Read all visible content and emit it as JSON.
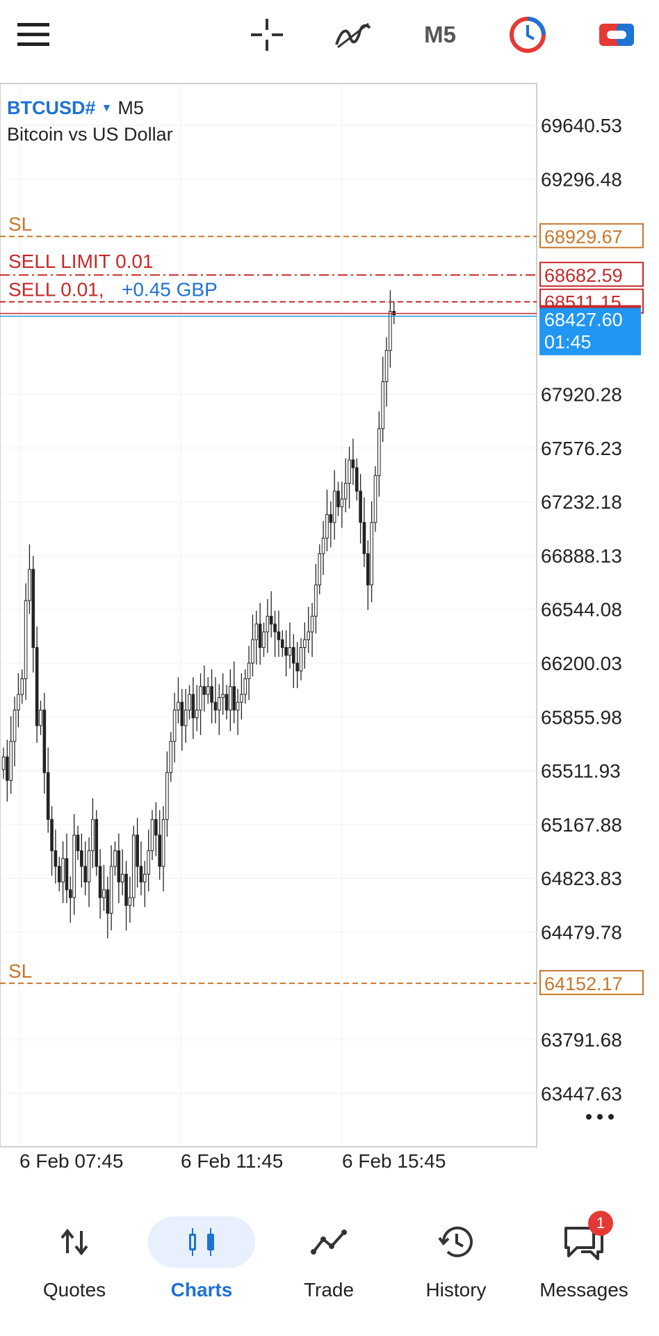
{
  "toolbar": {
    "menu_icon": "hamburger-icon",
    "crosshair_icon": "crosshair-icon",
    "indicators_icon": "indicators-icon",
    "timeframe": "M5",
    "one_click_icon": "clock-circle-icon",
    "trade_icon": "one-click-trading-icon"
  },
  "chart": {
    "symbol": "BTCUSD#",
    "timeframe": "M5",
    "description": "Bitcoin vs US Dollar",
    "price_labels": [
      "69640.53",
      "69296.48",
      "67920.28",
      "67576.23",
      "67232.18",
      "66888.13",
      "66544.08",
      "66200.03",
      "65855.98",
      "65511.93",
      "65167.88",
      "64823.83",
      "64479.78",
      "63791.68",
      "63447.63"
    ],
    "time_labels": [
      "6 Feb 07:45",
      "6 Feb 11:45",
      "6 Feb 15:45"
    ],
    "lines": {
      "sl_upper": {
        "label": "SL",
        "price": "68929.67",
        "color": "#c8762a"
      },
      "sell_limit": {
        "label": "SELL LIMIT 0.01",
        "price": "68682.59",
        "color": "#c62828"
      },
      "sell_order": {
        "label": "SELL 0.01,",
        "profit": "+0.45 GBP",
        "price": "68511.15",
        "color": "#c62828"
      },
      "current": {
        "price": "68427.60",
        "timer": "01:45",
        "color": "#2196f3"
      },
      "sl_lower": {
        "label": "SL",
        "price": "64152.17",
        "color": "#c8762a"
      }
    }
  },
  "bottom_nav": [
    {
      "label": "Quotes",
      "icon": "quotes-icon",
      "active": false
    },
    {
      "label": "Charts",
      "icon": "charts-icon",
      "active": true
    },
    {
      "label": "Trade",
      "icon": "trade-icon",
      "active": false
    },
    {
      "label": "History",
      "icon": "history-icon",
      "active": false
    },
    {
      "label": "Messages",
      "icon": "messages-icon",
      "active": false,
      "badge": "1"
    }
  ],
  "colors": {
    "accent": "#1e72d3",
    "sl": "#c8762a",
    "order": "#c62828",
    "bid": "#2196f3"
  }
}
